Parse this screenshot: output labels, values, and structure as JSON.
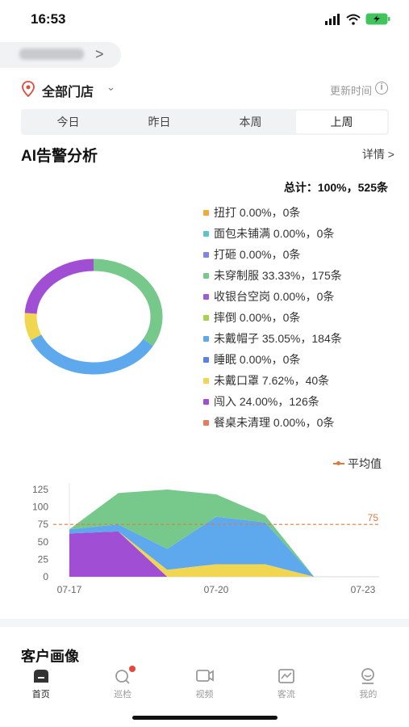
{
  "status_bar": {
    "time": "16:53"
  },
  "header": {
    "store_label": "全部门店",
    "update_time_label": "更新时间",
    "info_glyph": "i"
  },
  "tabs": [
    {
      "label": "今日",
      "active": false
    },
    {
      "label": "昨日",
      "active": false
    },
    {
      "label": "本周",
      "active": false
    },
    {
      "label": "上周",
      "active": true
    }
  ],
  "ai_section": {
    "title": "AI告警分析",
    "details_label": "详情 >",
    "total": "总计：100%，525条"
  },
  "legend": [
    {
      "label": "扭打 0.00%，0条",
      "color": "#f2a93b"
    },
    {
      "label": "面包未铺满 0.00%，0条",
      "color": "#5fc3c9"
    },
    {
      "label": "打砸 0.00%，0条",
      "color": "#7f86e6"
    },
    {
      "label": "未穿制服 33.33%，175条",
      "color": "#77c98b"
    },
    {
      "label": "收银台空岗 0.00%，0条",
      "color": "#9a5fd0"
    },
    {
      "label": "摔倒 0.00%，0条",
      "color": "#a7d24d"
    },
    {
      "label": "未戴帽子 35.05%，184条",
      "color": "#5ea8ee"
    },
    {
      "label": "睡眠 0.00%，0条",
      "color": "#5a7fe8"
    },
    {
      "label": "未戴口罩 7.62%，40条",
      "color": "#f1d652"
    },
    {
      "label": "闯入 24.00%，126条",
      "color": "#a04fd4"
    },
    {
      "label": "餐桌未清理 0.00%，0条",
      "color": "#e77a5f"
    }
  ],
  "chart_data": [
    {
      "type": "pie",
      "slices": [
        {
          "name": "未穿制服",
          "value": 175,
          "percent": 33.33,
          "color": "#77c98b"
        },
        {
          "name": "未戴帽子",
          "value": 184,
          "percent": 35.05,
          "color": "#5ea8ee"
        },
        {
          "name": "未戴口罩",
          "value": 40,
          "percent": 7.62,
          "color": "#f1d652"
        },
        {
          "name": "闯入",
          "value": 126,
          "percent": 24.0,
          "color": "#a04fd4"
        }
      ],
      "style": "donut"
    },
    {
      "type": "area",
      "stacked": true,
      "x": [
        "07-17",
        "07-18",
        "07-19",
        "07-20",
        "07-21",
        "07-22",
        "07-23"
      ],
      "x_tick_labels": [
        "07-17",
        "07-20",
        "07-23"
      ],
      "y_ticks": [
        0,
        25,
        50,
        75,
        100,
        125
      ],
      "ylim": [
        0,
        125
      ],
      "average_label": "平均值",
      "average_value": 75,
      "series": [
        {
          "color": "#a04fd4",
          "values": [
            62,
            65,
            0,
            0,
            0,
            0,
            0
          ]
        },
        {
          "color": "#f1d652",
          "values": [
            0,
            0,
            10,
            18,
            18,
            0,
            0
          ]
        },
        {
          "color": "#5ea8ee",
          "values": [
            6,
            10,
            30,
            68,
            60,
            0,
            0
          ]
        },
        {
          "color": "#77c98b",
          "values": [
            0,
            45,
            85,
            32,
            10,
            0,
            0
          ]
        }
      ]
    }
  ],
  "customer_section": {
    "title": "客户画像"
  },
  "bottom_nav": [
    {
      "label": "首页",
      "icon": "home-icon",
      "active": true
    },
    {
      "label": "巡检",
      "icon": "inspect-icon",
      "active": false,
      "badge": true
    },
    {
      "label": "视频",
      "icon": "video-icon",
      "active": false
    },
    {
      "label": "客流",
      "icon": "traffic-icon",
      "active": false
    },
    {
      "label": "我的",
      "icon": "profile-icon",
      "active": false
    }
  ]
}
